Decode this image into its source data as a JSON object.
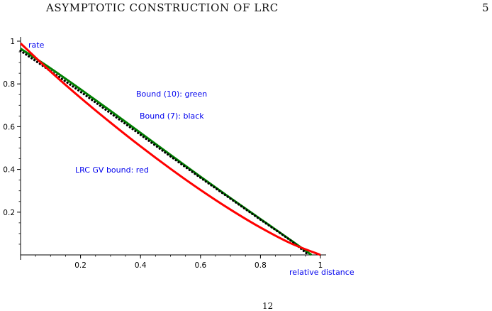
{
  "page": {
    "running_head": "ASYMPTOTIC CONSTRUCTION OF LRC",
    "page_number": "5",
    "footer_fragment": "12"
  },
  "chart_data": {
    "type": "line",
    "xlabel": "relative distance",
    "ylabel": "rate",
    "xlim": [
      0,
      1
    ],
    "ylim": [
      0,
      1
    ],
    "x_ticks": [
      "0.2",
      "0.4",
      "0.6",
      "0.8",
      "1"
    ],
    "y_ticks": [
      "0.2",
      "0.4",
      "0.6",
      "0.8",
      "1"
    ],
    "annotations": [
      "Bound (10): green",
      "Bound (7): black",
      "LRC GV bound: red"
    ],
    "series": [
      {
        "label": "Bound (10)",
        "color": "#008000",
        "style": "solid",
        "x": [
          0,
          0.1,
          0.2,
          0.3,
          0.4,
          0.5,
          0.6,
          0.7,
          0.8,
          0.9,
          0.97
        ],
        "y": [
          0.965,
          0.873,
          0.775,
          0.674,
          0.571,
          0.468,
          0.366,
          0.266,
          0.168,
          0.07,
          0
        ]
      },
      {
        "label": "Bound (7)",
        "color": "#000000",
        "style": "dotted",
        "x": [
          0,
          0.1,
          0.2,
          0.3,
          0.4,
          0.5,
          0.6,
          0.7,
          0.8,
          0.9,
          0.96
        ],
        "y": [
          0.955,
          0.86,
          0.763,
          0.663,
          0.562,
          0.461,
          0.361,
          0.263,
          0.165,
          0.068,
          0
        ]
      },
      {
        "label": "LRC GV bound",
        "color": "#ff0000",
        "style": "solid",
        "x": [
          0,
          0.1,
          0.2,
          0.3,
          0.4,
          0.5,
          0.6,
          0.7,
          0.8,
          0.9,
          1.0
        ],
        "y": [
          0.99,
          0.858,
          0.735,
          0.619,
          0.508,
          0.403,
          0.304,
          0.212,
          0.128,
          0.055,
          0
        ]
      }
    ]
  }
}
